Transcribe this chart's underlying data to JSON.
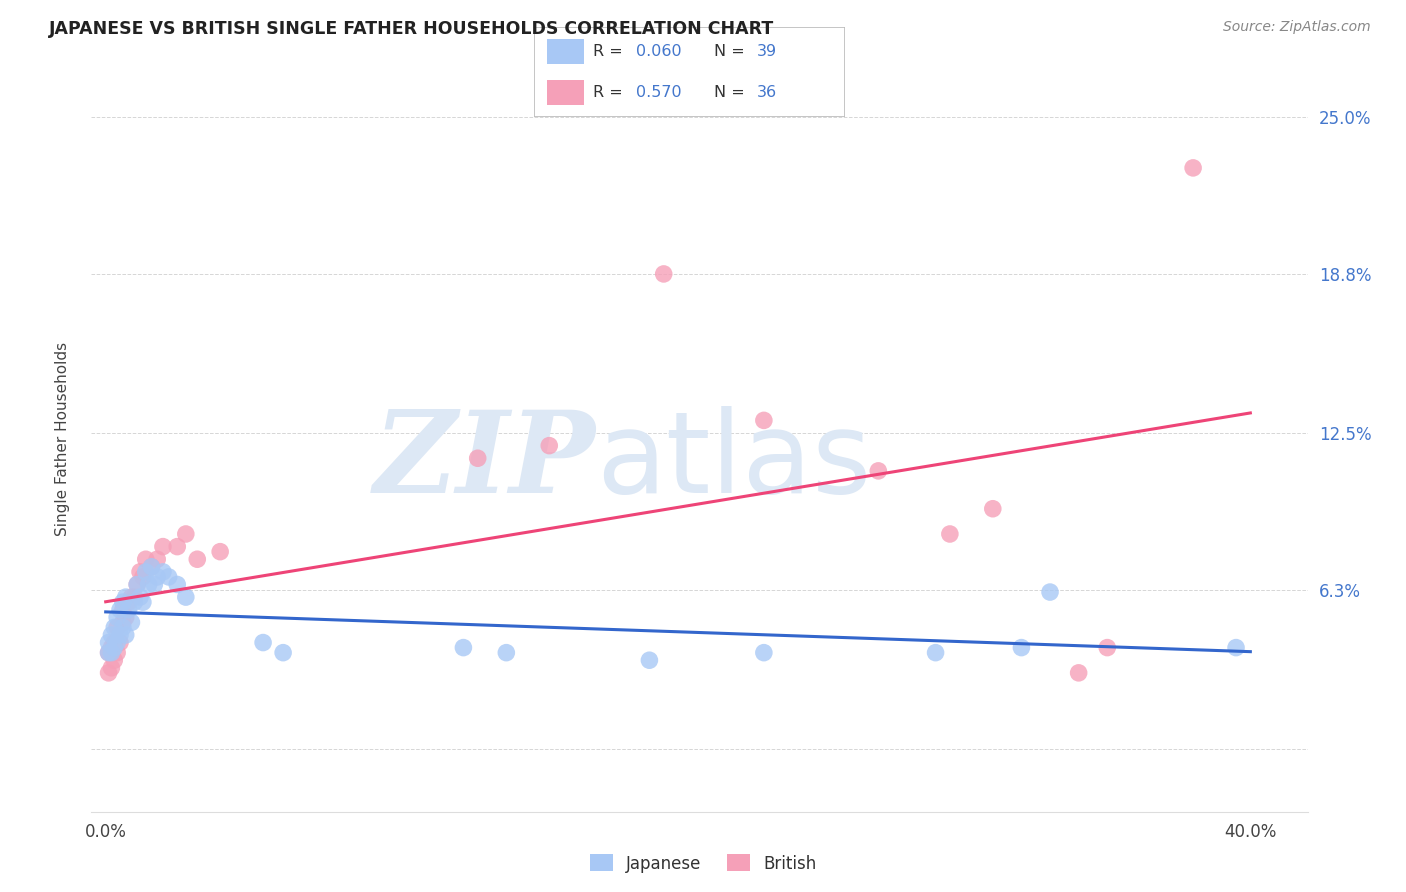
{
  "title": "JAPANESE VS BRITISH SINGLE FATHER HOUSEHOLDS CORRELATION CHART",
  "source": "Source: ZipAtlas.com",
  "ylabel": "Single Father Households",
  "xlim": [
    -0.005,
    0.42
  ],
  "ylim": [
    -0.025,
    0.27
  ],
  "x_ticks": [
    0.0,
    0.1,
    0.2,
    0.3,
    0.4
  ],
  "x_tick_labels": [
    "0.0%",
    "",
    "",
    "",
    "40.0%"
  ],
  "y_ticks": [
    0.0,
    0.063,
    0.125,
    0.188,
    0.25
  ],
  "y_tick_labels_right": [
    "",
    "6.3%",
    "12.5%",
    "18.8%",
    "25.0%"
  ],
  "japanese_color": "#a8c8f5",
  "british_color": "#f5a0b8",
  "japanese_line_color": "#3366cc",
  "british_line_color": "#ee4477",
  "R_japanese": 0.06,
  "N_japanese": 39,
  "R_british": 0.57,
  "N_british": 36,
  "japanese_x": [
    0.001,
    0.001,
    0.002,
    0.002,
    0.003,
    0.003,
    0.004,
    0.004,
    0.005,
    0.005,
    0.006,
    0.006,
    0.007,
    0.007,
    0.008,
    0.009,
    0.01,
    0.011,
    0.012,
    0.013,
    0.014,
    0.015,
    0.016,
    0.017,
    0.018,
    0.02,
    0.022,
    0.025,
    0.028,
    0.055,
    0.062,
    0.125,
    0.14,
    0.19,
    0.23,
    0.29,
    0.32,
    0.33,
    0.395
  ],
  "japanese_y": [
    0.038,
    0.042,
    0.038,
    0.045,
    0.04,
    0.048,
    0.042,
    0.052,
    0.045,
    0.055,
    0.048,
    0.058,
    0.045,
    0.06,
    0.055,
    0.05,
    0.058,
    0.065,
    0.06,
    0.058,
    0.07,
    0.065,
    0.072,
    0.065,
    0.068,
    0.07,
    0.068,
    0.065,
    0.06,
    0.042,
    0.038,
    0.04,
    0.038,
    0.035,
    0.038,
    0.038,
    0.04,
    0.062,
    0.04
  ],
  "british_x": [
    0.001,
    0.001,
    0.002,
    0.002,
    0.003,
    0.003,
    0.004,
    0.004,
    0.005,
    0.006,
    0.006,
    0.007,
    0.008,
    0.009,
    0.01,
    0.011,
    0.012,
    0.013,
    0.014,
    0.016,
    0.018,
    0.02,
    0.025,
    0.028,
    0.032,
    0.04,
    0.13,
    0.155,
    0.195,
    0.23,
    0.27,
    0.295,
    0.31,
    0.34,
    0.35,
    0.38
  ],
  "british_y": [
    0.03,
    0.038,
    0.032,
    0.04,
    0.035,
    0.042,
    0.038,
    0.048,
    0.042,
    0.05,
    0.055,
    0.052,
    0.058,
    0.06,
    0.06,
    0.065,
    0.07,
    0.068,
    0.075,
    0.072,
    0.075,
    0.08,
    0.08,
    0.085,
    0.075,
    0.078,
    0.115,
    0.12,
    0.188,
    0.13,
    0.11,
    0.085,
    0.095,
    0.03,
    0.04,
    0.23
  ],
  "background_color": "#ffffff",
  "grid_color": "#cccccc",
  "watermark_color": "#dde8f5"
}
